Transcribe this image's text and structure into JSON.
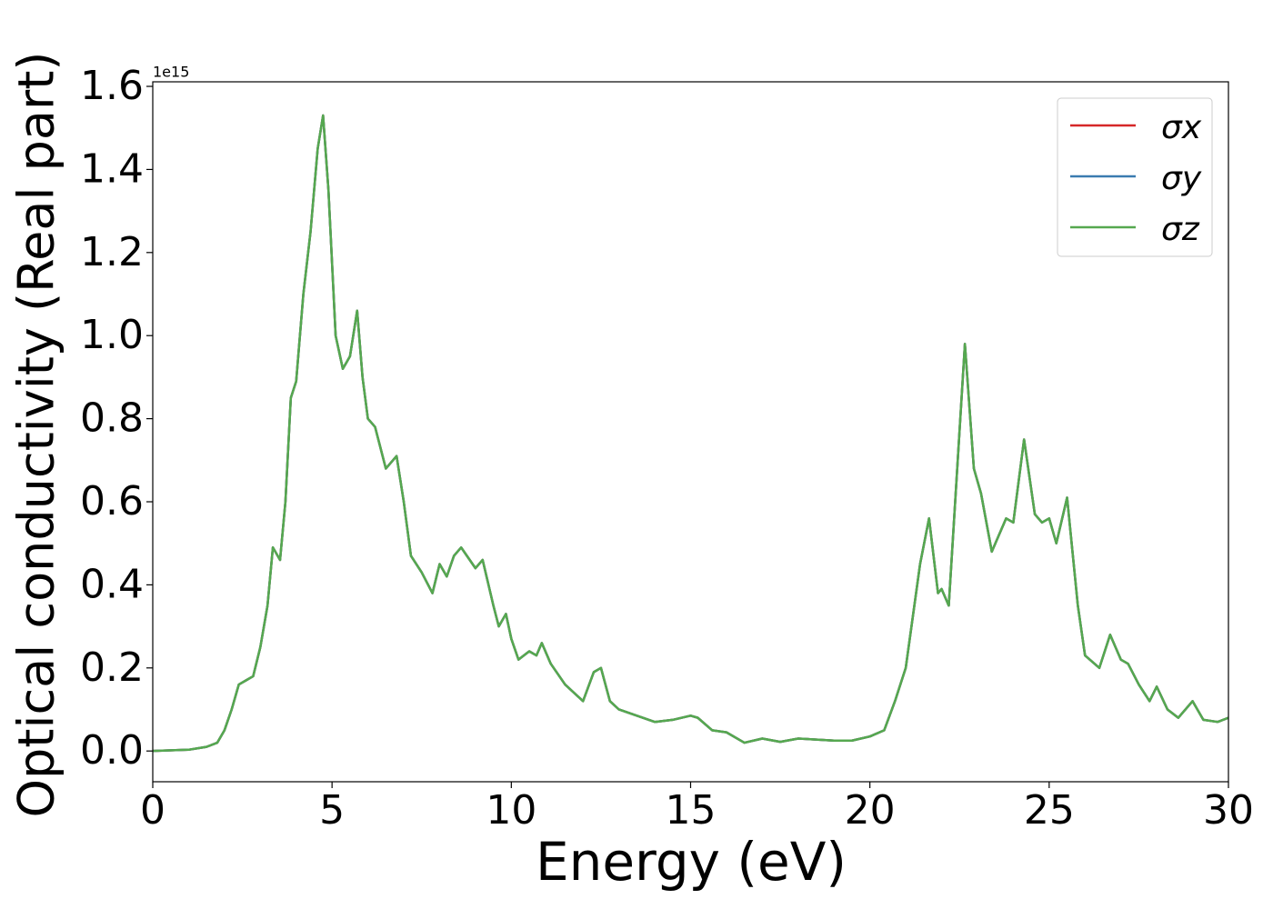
{
  "chart_data": {
    "type": "line",
    "xlabel": "Energy (eV)",
    "ylabel": "Optical conductivity (Real part)",
    "y_offset_text": "1e15",
    "xlim": [
      0,
      30
    ],
    "ylim": [
      -0.074,
      1.611
    ],
    "xticks": [
      0,
      5,
      10,
      15,
      20,
      25,
      30
    ],
    "yticks": [
      {
        "value": 0,
        "label": "0.0"
      },
      0.2,
      0.4,
      0.6,
      0.8,
      {
        "value": 1,
        "label": "1.0"
      },
      1.2,
      1.4,
      1.6
    ],
    "legend": "upper right",
    "x": [
      0,
      1,
      1.5,
      1.8,
      2.0,
      2.2,
      2.4,
      2.6,
      2.8,
      3.0,
      3.2,
      3.35,
      3.55,
      3.7,
      3.85,
      4.0,
      4.2,
      4.4,
      4.6,
      4.75,
      4.9,
      5.1,
      5.3,
      5.5,
      5.7,
      5.85,
      6.0,
      6.2,
      6.5,
      6.8,
      7.0,
      7.2,
      7.5,
      7.8,
      8.0,
      8.2,
      8.4,
      8.6,
      9.0,
      9.2,
      9.5,
      9.65,
      9.85,
      10.0,
      10.2,
      10.5,
      10.7,
      10.85,
      11.1,
      11.5,
      12.0,
      12.3,
      12.5,
      12.75,
      13.0,
      13.5,
      14.0,
      14.5,
      15.0,
      15.2,
      15.6,
      16.0,
      16.5,
      17.0,
      17.5,
      18.0,
      19.0,
      19.5,
      20.0,
      20.4,
      20.7,
      21.0,
      21.4,
      21.65,
      21.9,
      22.0,
      22.2,
      22.45,
      22.65,
      22.9,
      23.1,
      23.4,
      23.8,
      24.0,
      24.3,
      24.6,
      24.8,
      25.0,
      25.2,
      25.5,
      25.8,
      26.0,
      26.4,
      26.7,
      27.0,
      27.2,
      27.5,
      27.8,
      28.0,
      28.3,
      28.6,
      29.0,
      29.3,
      29.7,
      30.0
    ],
    "series": [
      {
        "name": "σx",
        "color": "#d62728",
        "values": [
          0,
          0.003,
          0.01,
          0.02,
          0.05,
          0.1,
          0.16,
          0.17,
          0.18,
          0.25,
          0.35,
          0.49,
          0.46,
          0.6,
          0.85,
          0.89,
          1.1,
          1.25,
          1.45,
          1.53,
          1.35,
          1.0,
          0.92,
          0.95,
          1.06,
          0.9,
          0.8,
          0.78,
          0.68,
          0.71,
          0.6,
          0.47,
          0.43,
          0.38,
          0.45,
          0.42,
          0.47,
          0.49,
          0.44,
          0.46,
          0.35,
          0.3,
          0.33,
          0.27,
          0.22,
          0.24,
          0.23,
          0.26,
          0.21,
          0.16,
          0.12,
          0.19,
          0.2,
          0.12,
          0.1,
          0.085,
          0.07,
          0.075,
          0.085,
          0.08,
          0.05,
          0.045,
          0.02,
          0.03,
          0.022,
          0.03,
          0.025,
          0.025,
          0.035,
          0.05,
          0.12,
          0.2,
          0.45,
          0.56,
          0.38,
          0.39,
          0.35,
          0.7,
          0.98,
          0.68,
          0.62,
          0.48,
          0.56,
          0.55,
          0.75,
          0.57,
          0.55,
          0.56,
          0.5,
          0.61,
          0.35,
          0.23,
          0.2,
          0.28,
          0.22,
          0.21,
          0.16,
          0.12,
          0.155,
          0.1,
          0.08,
          0.12,
          0.075,
          0.07,
          0.08
        ]
      },
      {
        "name": "σy",
        "color": "#3b7bb0",
        "values": [
          0,
          0.003,
          0.01,
          0.02,
          0.05,
          0.1,
          0.16,
          0.17,
          0.18,
          0.25,
          0.35,
          0.49,
          0.46,
          0.6,
          0.85,
          0.89,
          1.1,
          1.25,
          1.45,
          1.53,
          1.35,
          1.0,
          0.92,
          0.95,
          1.06,
          0.9,
          0.8,
          0.78,
          0.68,
          0.71,
          0.6,
          0.47,
          0.43,
          0.38,
          0.45,
          0.42,
          0.47,
          0.49,
          0.44,
          0.46,
          0.35,
          0.3,
          0.33,
          0.27,
          0.22,
          0.24,
          0.23,
          0.26,
          0.21,
          0.16,
          0.12,
          0.19,
          0.2,
          0.12,
          0.1,
          0.085,
          0.07,
          0.075,
          0.085,
          0.08,
          0.05,
          0.045,
          0.02,
          0.03,
          0.022,
          0.03,
          0.025,
          0.025,
          0.035,
          0.05,
          0.12,
          0.2,
          0.45,
          0.56,
          0.38,
          0.39,
          0.35,
          0.7,
          0.98,
          0.68,
          0.62,
          0.48,
          0.56,
          0.55,
          0.75,
          0.57,
          0.55,
          0.56,
          0.5,
          0.61,
          0.35,
          0.23,
          0.2,
          0.28,
          0.22,
          0.21,
          0.16,
          0.12,
          0.155,
          0.1,
          0.08,
          0.12,
          0.075,
          0.07,
          0.08
        ]
      },
      {
        "name": "σz",
        "color": "#55a84f",
        "values": [
          0,
          0.003,
          0.01,
          0.02,
          0.05,
          0.1,
          0.16,
          0.17,
          0.18,
          0.25,
          0.35,
          0.49,
          0.46,
          0.6,
          0.85,
          0.89,
          1.1,
          1.25,
          1.45,
          1.53,
          1.35,
          1.0,
          0.92,
          0.95,
          1.06,
          0.9,
          0.8,
          0.78,
          0.68,
          0.71,
          0.6,
          0.47,
          0.43,
          0.38,
          0.45,
          0.42,
          0.47,
          0.49,
          0.44,
          0.46,
          0.35,
          0.3,
          0.33,
          0.27,
          0.22,
          0.24,
          0.23,
          0.26,
          0.21,
          0.16,
          0.12,
          0.19,
          0.2,
          0.12,
          0.1,
          0.085,
          0.07,
          0.075,
          0.085,
          0.08,
          0.05,
          0.045,
          0.02,
          0.03,
          0.022,
          0.03,
          0.025,
          0.025,
          0.035,
          0.05,
          0.12,
          0.2,
          0.45,
          0.56,
          0.38,
          0.39,
          0.35,
          0.7,
          0.98,
          0.68,
          0.62,
          0.48,
          0.56,
          0.55,
          0.75,
          0.57,
          0.55,
          0.56,
          0.5,
          0.61,
          0.35,
          0.23,
          0.2,
          0.28,
          0.22,
          0.21,
          0.16,
          0.12,
          0.155,
          0.1,
          0.08,
          0.12,
          0.075,
          0.07,
          0.08
        ]
      }
    ]
  }
}
